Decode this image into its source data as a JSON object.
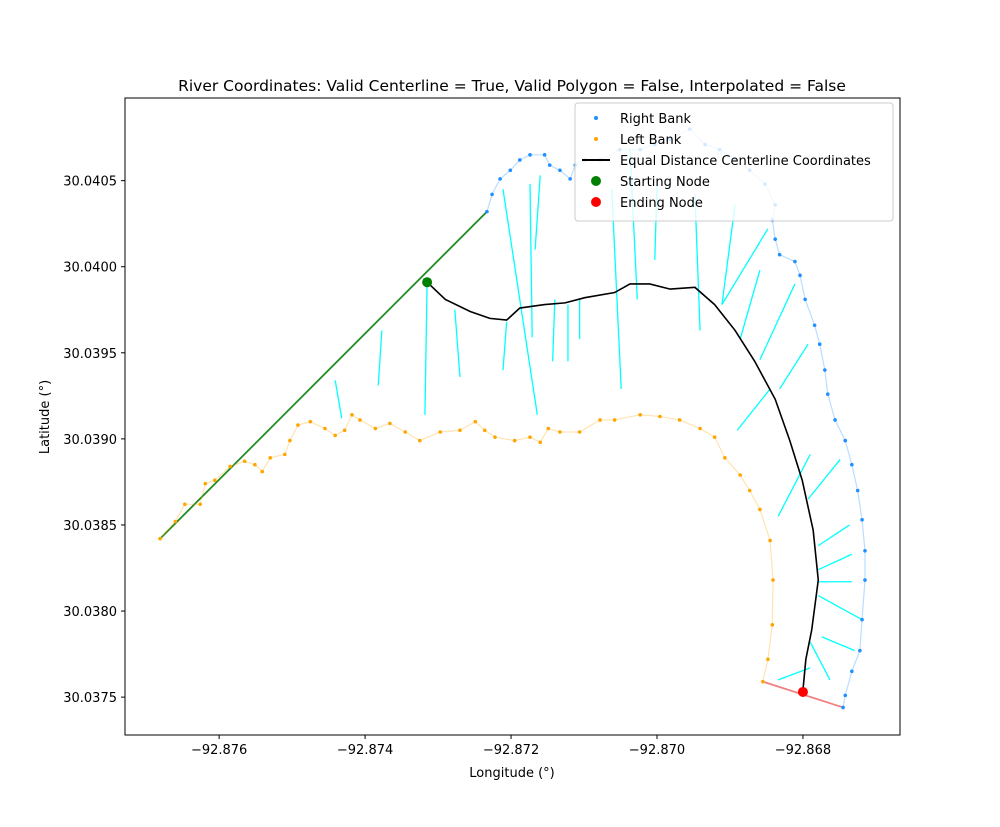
{
  "chart_data": {
    "type": "line",
    "title": "River Coordinates: Valid Centerline = True, Valid Polygon = False, Interpolated = False",
    "x_label": "Longitude (°)",
    "y_label": "Latitude (°)",
    "xlim": [
      -92.87729,
      -92.86667
    ],
    "ylim": [
      30.03728,
      30.04098
    ],
    "xticks": [
      {
        "value": -92.876,
        "label": "−92.876"
      },
      {
        "value": -92.874,
        "label": "−92.874"
      },
      {
        "value": -92.872,
        "label": "−92.872"
      },
      {
        "value": -92.87,
        "label": "−92.870"
      },
      {
        "value": -92.868,
        "label": "−92.868"
      }
    ],
    "yticks": [
      30.0375,
      {
        "value": 30.038,
        "label": "30.0380"
      },
      30.0385,
      {
        "value": 30.039,
        "label": "30.0390"
      },
      30.0395,
      {
        "value": 30.04,
        "label": "30.0400"
      },
      30.0405
    ],
    "legend": "upper right",
    "series": [
      {
        "name": "Right Bank",
        "color": "#1e90ff",
        "style": "dots",
        "x": [
          -92.87233,
          -92.87226,
          -92.87215,
          -92.87201,
          -92.87188,
          -92.87174,
          -92.87154,
          -92.87147,
          -92.87133,
          -92.87119,
          -92.87112,
          -92.87099,
          -92.87078,
          -92.87051,
          -92.87023,
          -92.87003,
          -92.86982,
          -92.86955,
          -92.86934,
          -92.86914,
          -92.86893,
          -92.86873,
          -92.86852,
          -92.86838,
          -92.86842,
          -92.86838,
          -92.86832,
          -92.86811,
          -92.86804,
          -92.86797,
          -92.86784,
          -92.86777,
          -92.8677,
          -92.86766,
          -92.86756,
          -92.86742,
          -92.86733,
          -92.86725,
          -92.86719,
          -92.86715,
          -92.86715,
          -92.86719,
          -92.86722,
          -92.86733,
          -92.86742,
          -92.86745
        ],
        "y": [
          30.04032,
          30.04042,
          30.04051,
          30.04056,
          30.04062,
          30.04065,
          30.04065,
          30.04059,
          30.04056,
          30.04051,
          30.04059,
          30.04062,
          30.04062,
          30.04068,
          30.04068,
          30.04071,
          30.04074,
          30.0408,
          30.04071,
          30.04068,
          30.04062,
          30.04056,
          30.04048,
          30.04036,
          30.04027,
          30.04016,
          30.04007,
          30.04003,
          30.03995,
          30.03981,
          30.03966,
          30.03955,
          30.0394,
          30.03926,
          30.03911,
          30.03899,
          30.03885,
          30.0387,
          30.03853,
          30.03835,
          30.03818,
          30.03795,
          30.03777,
          30.03765,
          30.03751,
          30.03744
        ]
      },
      {
        "name": "Left Bank",
        "color": "#ffa500",
        "style": "dots",
        "x": [
          -92.87681,
          -92.8766,
          -92.87647,
          -92.87626,
          -92.87619,
          -92.87606,
          -92.87585,
          -92.87565,
          -92.87551,
          -92.87541,
          -92.8753,
          -92.8751,
          -92.87503,
          -92.87492,
          -92.87475,
          -92.87455,
          -92.87441,
          -92.87428,
          -92.87418,
          -92.87407,
          -92.87386,
          -92.87366,
          -92.87345,
          -92.87325,
          -92.87297,
          -92.8727,
          -92.87249,
          -92.87236,
          -92.87222,
          -92.87195,
          -92.87174,
          -92.8716,
          -92.87149,
          -92.87133,
          -92.87106,
          -92.87078,
          -92.87058,
          -92.87023,
          -92.86996,
          -92.86969,
          -92.86941,
          -92.86921,
          -92.86907,
          -92.86886,
          -92.86873,
          -92.86859,
          -92.86845,
          -92.86841,
          -92.86842,
          -92.86848,
          -92.86855
        ],
        "y": [
          30.03842,
          30.03852,
          30.03862,
          30.03862,
          30.03874,
          30.03876,
          30.03884,
          30.03887,
          30.03885,
          30.03881,
          30.03889,
          30.03891,
          30.03899,
          30.03908,
          30.0391,
          30.03906,
          30.03902,
          30.03905,
          30.03914,
          30.03911,
          30.03906,
          30.03909,
          30.03904,
          30.03899,
          30.03904,
          30.03905,
          30.0391,
          30.03905,
          30.03901,
          30.03899,
          30.03901,
          30.03898,
          30.03906,
          30.03904,
          30.03904,
          30.03911,
          30.03911,
          30.03914,
          30.03913,
          30.03911,
          30.03906,
          30.03901,
          30.03889,
          30.03879,
          30.0387,
          30.03859,
          30.03841,
          30.03818,
          30.03792,
          30.03772,
          30.03759
        ]
      },
      {
        "name": "Equal Distance Centerline Coordinates",
        "color": "#000000",
        "style": "line",
        "x": [
          -92.87315,
          -92.8729,
          -92.87256,
          -92.87229,
          -92.87206,
          -92.87188,
          -92.87154,
          -92.87126,
          -92.87099,
          -92.87058,
          -92.87037,
          -92.8701,
          -92.86982,
          -92.86948,
          -92.86921,
          -92.86893,
          -92.86866,
          -92.86838,
          -92.86818,
          -92.86801,
          -92.86786,
          -92.86779,
          -92.86788,
          -92.86796,
          -92.868
        ],
        "y": [
          30.03991,
          30.03981,
          30.03974,
          30.0397,
          30.03969,
          30.03976,
          30.03978,
          30.03979,
          30.03982,
          30.03985,
          30.0399,
          30.0399,
          30.03987,
          30.03988,
          30.03978,
          30.03963,
          30.03945,
          30.03923,
          30.03899,
          30.03876,
          30.03847,
          30.03818,
          30.03789,
          30.03772,
          30.03754
        ]
      },
      {
        "name": "Starting Node",
        "color": "#008000",
        "style": "node",
        "x": [
          -92.87315
        ],
        "y": [
          30.03991
        ]
      },
      {
        "name": "Ending Node",
        "color": "#ff0000",
        "style": "node",
        "x": [
          -92.868
        ],
        "y": [
          30.03753
        ]
      }
    ],
    "connectors": [
      {
        "color": "#228b22",
        "x": [
          -92.87681,
          -92.87233
        ],
        "y": [
          30.03842,
          30.04032
        ]
      },
      {
        "color": "#f08080",
        "x": [
          -92.86855,
          -92.86745
        ],
        "y": [
          30.03759,
          30.03744
        ]
      }
    ],
    "perpendiculars": {
      "color": "#00ffff",
      "segments": [
        {
          "x": [
            -92.87315,
            -92.87318
          ],
          "y": [
            30.03991,
            30.03914
          ]
        },
        {
          "x": [
            -92.87277,
            -92.8727
          ],
          "y": [
            30.03975,
            30.03936
          ]
        },
        {
          "x": [
            -92.87377,
            -92.87382
          ],
          "y": [
            30.03963,
            30.03931
          ]
        },
        {
          "x": [
            -92.87441,
            -92.87432
          ],
          "y": [
            30.03934,
            30.03912
          ]
        },
        {
          "x": [
            -92.87211,
            -92.87164
          ],
          "y": [
            30.04045,
            30.03914
          ]
        },
        {
          "x": [
            -92.87174,
            -92.87171
          ],
          "y": [
            30.04048,
            30.03959
          ]
        },
        {
          "x": [
            -92.8716,
            -92.87167
          ],
          "y": [
            30.04053,
            30.0401
          ]
        },
        {
          "x": [
            -92.87206,
            -92.87211
          ],
          "y": [
            30.03968,
            30.0394
          ]
        },
        {
          "x": [
            -92.8714,
            -92.87143
          ],
          "y": [
            30.03981,
            30.03945
          ]
        },
        {
          "x": [
            -92.87122,
            -92.87122
          ],
          "y": [
            30.03978,
            30.03945
          ]
        },
        {
          "x": [
            -92.87106,
            -92.87106
          ],
          "y": [
            30.03981,
            30.03958
          ]
        },
        {
          "x": [
            -92.87062,
            -92.87049
          ],
          "y": [
            30.04045,
            30.03929
          ]
        },
        {
          "x": [
            -92.87037,
            -92.87027
          ],
          "y": [
            30.04068,
            30.03981
          ]
        },
        {
          "x": [
            -92.87,
            -92.87003
          ],
          "y": [
            30.04048,
            30.04004
          ]
        },
        {
          "x": [
            -92.86948,
            -92.86941
          ],
          "y": [
            30.04042,
            30.03963
          ]
        },
        {
          "x": [
            -92.86893,
            -92.86911
          ],
          "y": [
            30.04036,
            30.03978
          ]
        },
        {
          "x": [
            -92.86848,
            -92.86911
          ],
          "y": [
            30.04022,
            30.03978
          ]
        },
        {
          "x": [
            -92.86859,
            -92.86886
          ],
          "y": [
            30.03998,
            30.03958
          ]
        },
        {
          "x": [
            -92.86811,
            -92.86859
          ],
          "y": [
            30.0399,
            30.03946
          ]
        },
        {
          "x": [
            -92.86793,
            -92.86832
          ],
          "y": [
            30.03955,
            30.03929
          ]
        },
        {
          "x": [
            -92.86845,
            -92.8689
          ],
          "y": [
            30.03929,
            30.03905
          ]
        },
        {
          "x": [
            -92.8679,
            -92.86834
          ],
          "y": [
            30.03891,
            30.03855
          ]
        },
        {
          "x": [
            -92.86749,
            -92.86793
          ],
          "y": [
            30.03888,
            30.03865
          ]
        },
        {
          "x": [
            -92.86736,
            -92.86779
          ],
          "y": [
            30.0385,
            30.03838
          ]
        },
        {
          "x": [
            -92.86733,
            -92.86779
          ],
          "y": [
            30.03833,
            30.03824
          ]
        },
        {
          "x": [
            -92.86733,
            -92.86779
          ],
          "y": [
            30.03817,
            30.03817
          ]
        },
        {
          "x": [
            -92.86719,
            -92.86779
          ],
          "y": [
            30.03795,
            30.03809
          ]
        },
        {
          "x": [
            -92.86729,
            -92.86774
          ],
          "y": [
            30.03777,
            30.03785
          ]
        },
        {
          "x": [
            -92.86763,
            -92.8679
          ],
          "y": [
            30.0376,
            30.03782
          ]
        },
        {
          "x": [
            -92.8679,
            -92.86834
          ],
          "y": [
            30.03767,
            30.0376
          ]
        }
      ]
    }
  }
}
